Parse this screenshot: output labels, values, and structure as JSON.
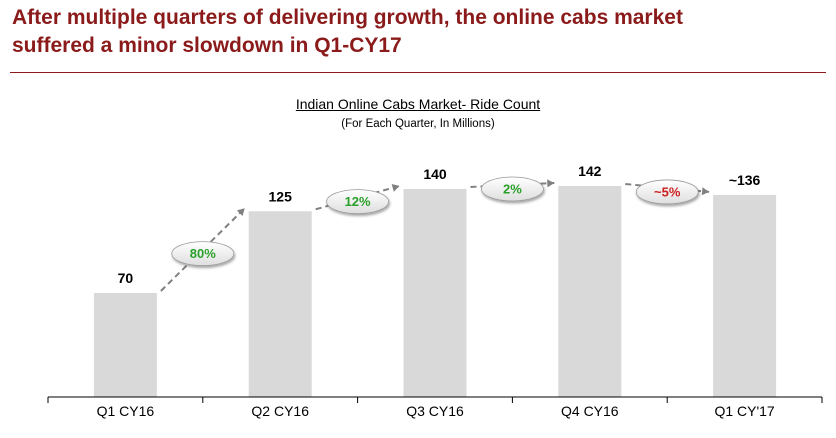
{
  "headline": {
    "line1": "After multiple quarters of delivering growth, the online cabs market",
    "line2": "suffered a minor slowdown in Q1-CY17"
  },
  "colors": {
    "headline": "#8b1a1a",
    "bar": "#d9d9d9",
    "positive": "#2aa02a",
    "negative": "#cc1f1f",
    "connector": "#808080"
  },
  "chart_data": {
    "type": "bar",
    "title": "Indian Online Cabs Market- Ride Count",
    "subtitle": "(For Each Quarter, In Millions)",
    "categories": [
      "Q1 CY16",
      "Q2 CY16",
      "Q3 CY16",
      "Q4 CY16",
      "Q1 CY'17"
    ],
    "values": [
      70,
      125,
      140,
      142,
      136
    ],
    "value_labels": [
      "70",
      "125",
      "140",
      "142",
      "~136"
    ],
    "growth": [
      {
        "label": "80%",
        "sign": "positive"
      },
      {
        "label": "12%",
        "sign": "positive"
      },
      {
        "label": "2%",
        "sign": "positive"
      },
      {
        "label": "~5%",
        "sign": "negative"
      }
    ],
    "ylim": [
      0,
      142
    ],
    "grid": false,
    "legend": "none"
  }
}
